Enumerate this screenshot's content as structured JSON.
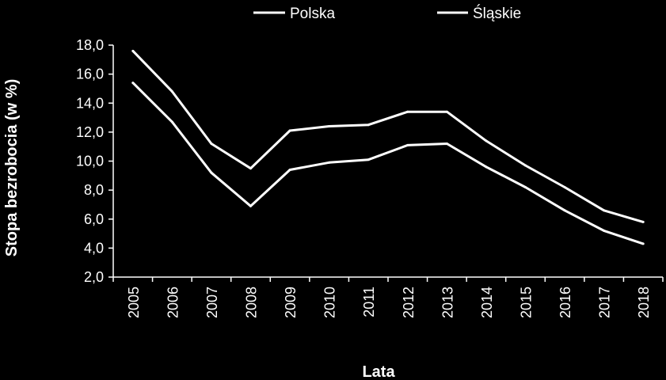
{
  "chart_data": {
    "type": "line",
    "title": "",
    "xlabel": "Lata",
    "ylabel": "Stopa bezrobocia (w %)",
    "categories": [
      "2005",
      "2006",
      "2007",
      "2008",
      "2009",
      "2010",
      "2011",
      "2012",
      "2013",
      "2014",
      "2015",
      "2016",
      "2017",
      "2018"
    ],
    "ylim": [
      2.0,
      18.0
    ],
    "yticks": [
      "2,0",
      "4,0",
      "6,0",
      "8,0",
      "10,0",
      "12,0",
      "14,0",
      "16,0",
      "18,0"
    ],
    "grid": false,
    "legend_position": "top",
    "series": [
      {
        "name": "Polska",
        "values": [
          17.6,
          14.8,
          11.2,
          9.5,
          12.1,
          12.4,
          12.5,
          13.4,
          13.4,
          11.4,
          9.7,
          8.2,
          6.6,
          5.8
        ]
      },
      {
        "name": "Śląskie",
        "values": [
          15.4,
          12.7,
          9.2,
          6.9,
          9.4,
          9.9,
          10.1,
          11.1,
          11.2,
          9.6,
          8.2,
          6.6,
          5.2,
          4.3
        ]
      }
    ],
    "colors": {
      "background": "#000000",
      "line": "#ffffff",
      "axis": "#ffffff"
    }
  }
}
